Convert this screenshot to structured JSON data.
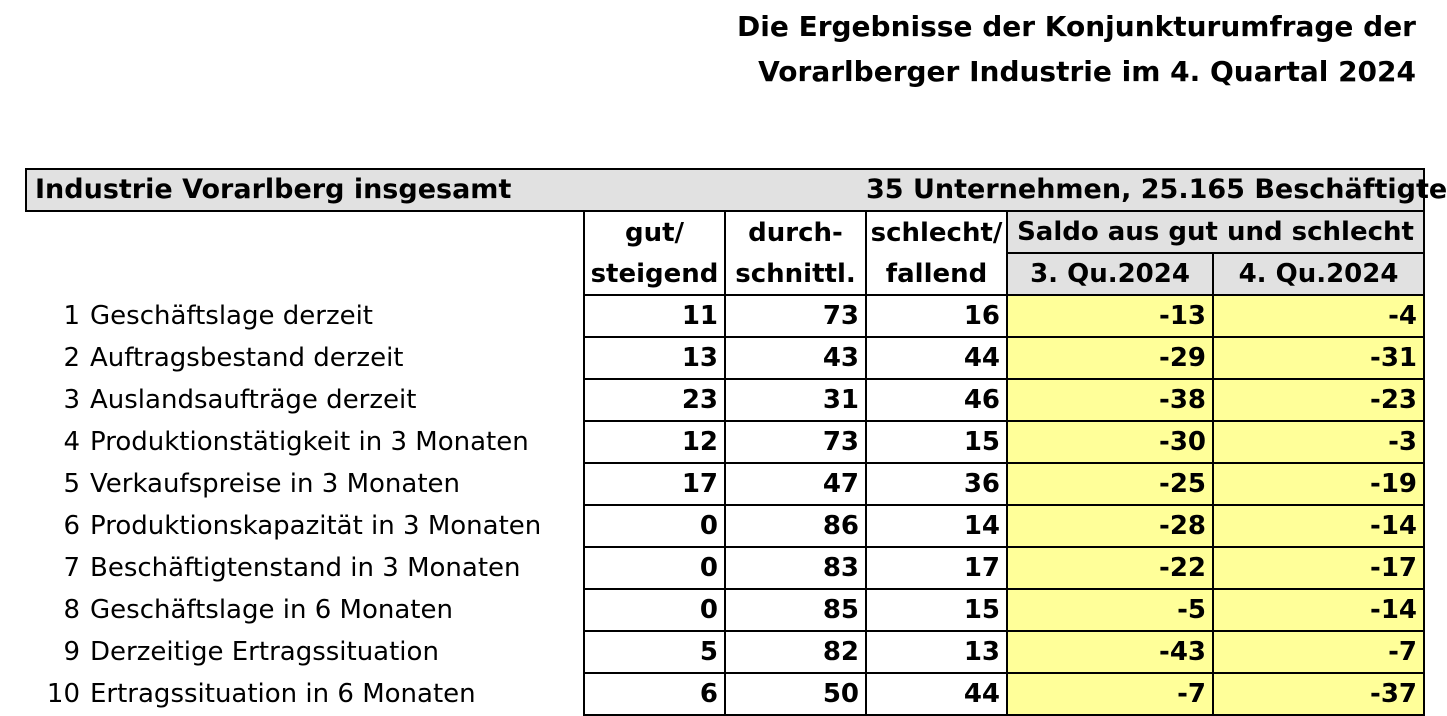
{
  "title": {
    "line1": "Die Ergebnisse der Konjunkturumfrage der",
    "line2": "Vorarlberger Industrie im 4. Quartal 2024"
  },
  "table": {
    "header_left": "Industrie Vorarlberg insgesamt",
    "header_right": "35 Unternehmen, 25.165 Beschäftigte",
    "columns": {
      "gut_line1": "gut/",
      "gut_line2": "steigend",
      "durch_line1": "durch-",
      "durch_line2": "schnittl.",
      "schlecht_line1": "schlecht/",
      "schlecht_line2": "fallend",
      "saldo": "Saldo aus gut und schlecht",
      "q3": "3. Qu.2024",
      "q4": "4. Qu.2024"
    },
    "rows": [
      {
        "num": "1",
        "label": "Geschäftslage derzeit",
        "gut": "11",
        "durch": "73",
        "schlecht": "16",
        "q3": "-13",
        "q4": "-4"
      },
      {
        "num": "2",
        "label": "Auftragsbestand derzeit",
        "gut": "13",
        "durch": "43",
        "schlecht": "44",
        "q3": "-29",
        "q4": "-31"
      },
      {
        "num": "3",
        "label": "Auslandsaufträge derzeit",
        "gut": "23",
        "durch": "31",
        "schlecht": "46",
        "q3": "-38",
        "q4": "-23"
      },
      {
        "num": "4",
        "label": "Produktionstätigkeit in 3 Monaten",
        "gut": "12",
        "durch": "73",
        "schlecht": "15",
        "q3": "-30",
        "q4": "-3"
      },
      {
        "num": "5",
        "label": "Verkaufspreise in 3 Monaten",
        "gut": "17",
        "durch": "47",
        "schlecht": "36",
        "q3": "-25",
        "q4": "-19"
      },
      {
        "num": "6",
        "label": "Produktionskapazität in 3 Monaten",
        "gut": "0",
        "durch": "86",
        "schlecht": "14",
        "q3": "-28",
        "q4": "-14"
      },
      {
        "num": "7",
        "label": "Beschäftigtenstand in 3 Monaten",
        "gut": "0",
        "durch": "83",
        "schlecht": "17",
        "q3": "-22",
        "q4": "-17"
      },
      {
        "num": "8",
        "label": "Geschäftslage in 6 Monaten",
        "gut": "0",
        "durch": "85",
        "schlecht": "15",
        "q3": "-5",
        "q4": "-14"
      },
      {
        "num": "9",
        "label": "Derzeitige Ertragssituation",
        "gut": "5",
        "durch": "82",
        "schlecht": "13",
        "q3": "-43",
        "q4": "-7"
      },
      {
        "num": "10",
        "label": "Ertragssituation in 6 Monaten",
        "gut": "6",
        "durch": "50",
        "schlecht": "44",
        "q3": "-7",
        "q4": "-37"
      }
    ]
  },
  "colors": {
    "header_bg": "#e1e1e1",
    "saldo_highlight": "#ffff99"
  }
}
